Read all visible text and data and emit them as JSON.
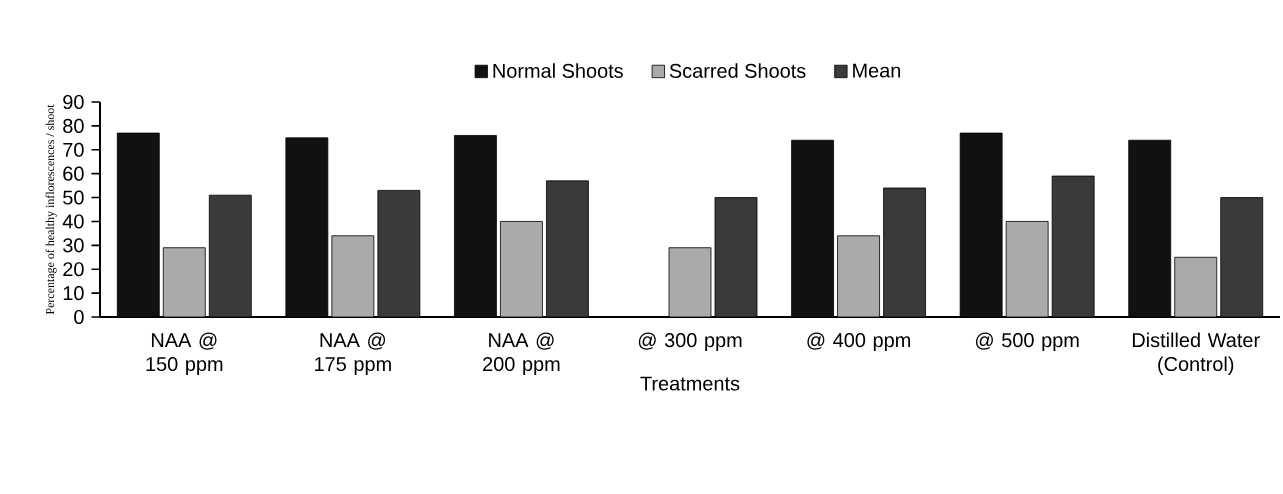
{
  "chart_data": {
    "type": "bar",
    "categories": [
      "NAA @ 150 ppm",
      "NAA @ 175 ppm",
      "NAA @ 200 ppm",
      "@ 300 ppm",
      "@ 400 ppm",
      "@ 500 ppm",
      "Distilled Water (Control)"
    ],
    "series": [
      {
        "name": "Normal Shoots",
        "color": "#111111",
        "values": [
          77,
          75,
          76,
          null,
          74,
          77,
          74
        ]
      },
      {
        "name": "Scarred Shoots",
        "color": "#aaaaaa",
        "values": [
          29,
          34,
          40,
          29,
          34,
          40,
          25
        ]
      },
      {
        "name": "Mean",
        "color": "#3a3a3a",
        "values": [
          51,
          53,
          57,
          50,
          54,
          59,
          50
        ]
      }
    ],
    "xlabel": "Treatments",
    "ylabel": "Percentage of healthy inflorescences / shoot",
    "ylim": [
      0,
      90
    ],
    "yticks": [
      0,
      10,
      20,
      30,
      40,
      50,
      60,
      70,
      80,
      90
    ],
    "legend": "top",
    "grid": false
  }
}
